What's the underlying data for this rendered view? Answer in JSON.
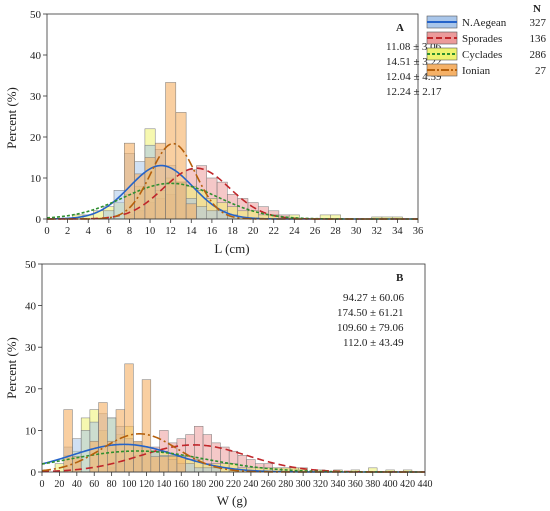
{
  "chart_data": [
    {
      "type": "bar",
      "panel_label": "A",
      "xlabel": "L (cm)",
      "ylabel": "Percent (%)",
      "xlim": [
        0,
        36
      ],
      "ylim": [
        0,
        50
      ],
      "xticks": [
        0,
        2,
        4,
        6,
        8,
        10,
        12,
        14,
        16,
        18,
        20,
        22,
        24,
        26,
        28,
        30,
        32,
        34,
        36
      ],
      "yticks": [
        0,
        10,
        20,
        30,
        40,
        50
      ],
      "legend_position": "top-right",
      "legend_header": "N",
      "stats": [
        "11.08 ± 3.06",
        "14.51 ± 3.22",
        "12.04 ± 4.59",
        "12.24 ± 2.17"
      ],
      "series": [
        {
          "name": "N.Aegean",
          "n": "327",
          "mean": 11.08,
          "sd": 3.06,
          "bins": [
            [
              6,
              2
            ],
            [
              7,
              7
            ],
            [
              8,
              16
            ],
            [
              9,
              14
            ],
            [
              10,
              18
            ],
            [
              11,
              17
            ],
            [
              12,
              13
            ],
            [
              13,
              9
            ],
            [
              14,
              5
            ],
            [
              15,
              3
            ],
            [
              16,
              2
            ],
            [
              17,
              2
            ],
            [
              18,
              1
            ]
          ]
        },
        {
          "name": "Sporades",
          "n": "136",
          "mean": 14.51,
          "sd": 3.22,
          "bins": [
            [
              8,
              1
            ],
            [
              9,
              2
            ],
            [
              10,
              4
            ],
            [
              11,
              5
            ],
            [
              12,
              6
            ],
            [
              13,
              9
            ],
            [
              14,
              12
            ],
            [
              15,
              13
            ],
            [
              16,
              10
            ],
            [
              17,
              9
            ],
            [
              18,
              6
            ],
            [
              19,
              5
            ],
            [
              20,
              4
            ],
            [
              21,
              3
            ],
            [
              22,
              2
            ],
            [
              23,
              1
            ]
          ]
        },
        {
          "name": "Cyclades",
          "n": "286",
          "mean": 12.04,
          "sd": 4.59,
          "bins": [
            [
              3,
              1
            ],
            [
              4,
              1
            ],
            [
              5,
              2
            ],
            [
              6,
              3
            ],
            [
              7,
              4
            ],
            [
              8,
              6
            ],
            [
              9,
              8
            ],
            [
              10,
              22
            ],
            [
              11,
              7
            ],
            [
              12,
              10
            ],
            [
              13,
              9
            ],
            [
              14,
              8
            ],
            [
              15,
              7
            ],
            [
              16,
              5
            ],
            [
              17,
              4
            ],
            [
              18,
              3
            ],
            [
              19,
              2
            ],
            [
              20,
              2
            ],
            [
              21,
              1
            ],
            [
              22,
              1
            ],
            [
              24,
              1
            ],
            [
              27,
              1
            ],
            [
              28,
              1
            ],
            [
              32,
              0.5
            ],
            [
              33,
              0.5
            ],
            [
              34,
              0.5
            ]
          ]
        },
        {
          "name": "Ionian",
          "n": "27",
          "mean": 12.24,
          "sd": 2.17,
          "bins": [
            [
              8,
              18.5
            ],
            [
              9,
              11
            ],
            [
              10,
              15
            ],
            [
              11,
              18.5
            ],
            [
              12,
              33.3
            ],
            [
              13,
              26
            ],
            [
              14,
              3.7
            ]
          ]
        }
      ]
    },
    {
      "type": "bar",
      "panel_label": "B",
      "xlabel": "W (g)",
      "ylabel": "Percent (%)",
      "xlim": [
        0,
        440
      ],
      "ylim": [
        0,
        50
      ],
      "xticks": [
        0,
        20,
        40,
        60,
        80,
        100,
        120,
        140,
        160,
        180,
        200,
        220,
        240,
        260,
        280,
        300,
        320,
        340,
        360,
        380,
        400,
        420,
        440
      ],
      "yticks": [
        0,
        10,
        20,
        30,
        40,
        50
      ],
      "stats": [
        "94.27 ± 60.06",
        "174.50 ± 61.21",
        "109.60 ± 79.06",
        "112.0 ± 43.49"
      ],
      "series": [
        {
          "name": "N.Aegean",
          "mean": 94.27,
          "sd": 60.06,
          "bins": [
            [
              30,
              6
            ],
            [
              40,
              8
            ],
            [
              50,
              10
            ],
            [
              60,
              12
            ],
            [
              70,
              14
            ],
            [
              80,
              13
            ],
            [
              90,
              11
            ],
            [
              100,
              8
            ],
            [
              110,
              7
            ],
            [
              120,
              6
            ],
            [
              130,
              5
            ],
            [
              140,
              4
            ],
            [
              150,
              3
            ],
            [
              160,
              2
            ],
            [
              170,
              2
            ],
            [
              180,
              1
            ],
            [
              190,
              1
            ],
            [
              200,
              1
            ]
          ]
        },
        {
          "name": "Sporades",
          "mean": 174.5,
          "sd": 61.21,
          "bins": [
            [
              80,
              1
            ],
            [
              90,
              2
            ],
            [
              100,
              3
            ],
            [
              110,
              4
            ],
            [
              120,
              5
            ],
            [
              130,
              6
            ],
            [
              140,
              10
            ],
            [
              150,
              7
            ],
            [
              160,
              8
            ],
            [
              170,
              9
            ],
            [
              180,
              11
            ],
            [
              190,
              9
            ],
            [
              200,
              7
            ],
            [
              210,
              6
            ],
            [
              220,
              5
            ],
            [
              230,
              4
            ],
            [
              240,
              3
            ],
            [
              250,
              2
            ],
            [
              260,
              2
            ],
            [
              270,
              1
            ],
            [
              280,
              1
            ],
            [
              290,
              1
            ],
            [
              300,
              0.5
            ]
          ]
        },
        {
          "name": "Cyclades",
          "mean": 109.6,
          "sd": 79.06,
          "bins": [
            [
              20,
              2
            ],
            [
              30,
              4
            ],
            [
              40,
              5
            ],
            [
              50,
              13
            ],
            [
              60,
              15
            ],
            [
              70,
              10
            ],
            [
              80,
              13
            ],
            [
              90,
              9
            ],
            [
              100,
              11
            ],
            [
              110,
              7
            ],
            [
              120,
              6
            ],
            [
              130,
              5
            ],
            [
              140,
              5
            ],
            [
              150,
              4
            ],
            [
              160,
              4
            ],
            [
              170,
              3
            ],
            [
              180,
              3
            ],
            [
              190,
              2
            ],
            [
              200,
              2
            ],
            [
              210,
              2
            ],
            [
              220,
              2
            ],
            [
              230,
              1
            ],
            [
              240,
              1
            ],
            [
              250,
              1
            ],
            [
              260,
              1
            ],
            [
              270,
              1
            ],
            [
              280,
              1
            ],
            [
              290,
              1
            ],
            [
              300,
              1
            ],
            [
              320,
              0.5
            ],
            [
              340,
              0.5
            ],
            [
              360,
              0.5
            ],
            [
              380,
              1
            ],
            [
              400,
              0.5
            ],
            [
              420,
              0.5
            ]
          ]
        },
        {
          "name": "Ionian",
          "mean": 112.0,
          "sd": 43.49,
          "bins": [
            [
              30,
              15
            ],
            [
              40,
              3.7
            ],
            [
              60,
              7.4
            ],
            [
              70,
              16.7
            ],
            [
              80,
              7.4
            ],
            [
              90,
              15
            ],
            [
              100,
              26
            ],
            [
              110,
              7.4
            ],
            [
              120,
              22.2
            ],
            [
              130,
              3.7
            ],
            [
              140,
              3.7
            ],
            [
              150,
              3.7
            ],
            [
              160,
              3.7
            ]
          ]
        }
      ]
    }
  ],
  "colors": {
    "N.Aegean": "#2563c9",
    "Sporades": "#c0262a",
    "Cyclades": "#2f8f2f",
    "Ionian": "#b5600c",
    "N.Aegean_fill": "#a9c6ea",
    "Sporades_fill": "#ec9a9a",
    "Cyclades_fill": "#eef36f",
    "Ionian_fill": "#f5b167"
  }
}
